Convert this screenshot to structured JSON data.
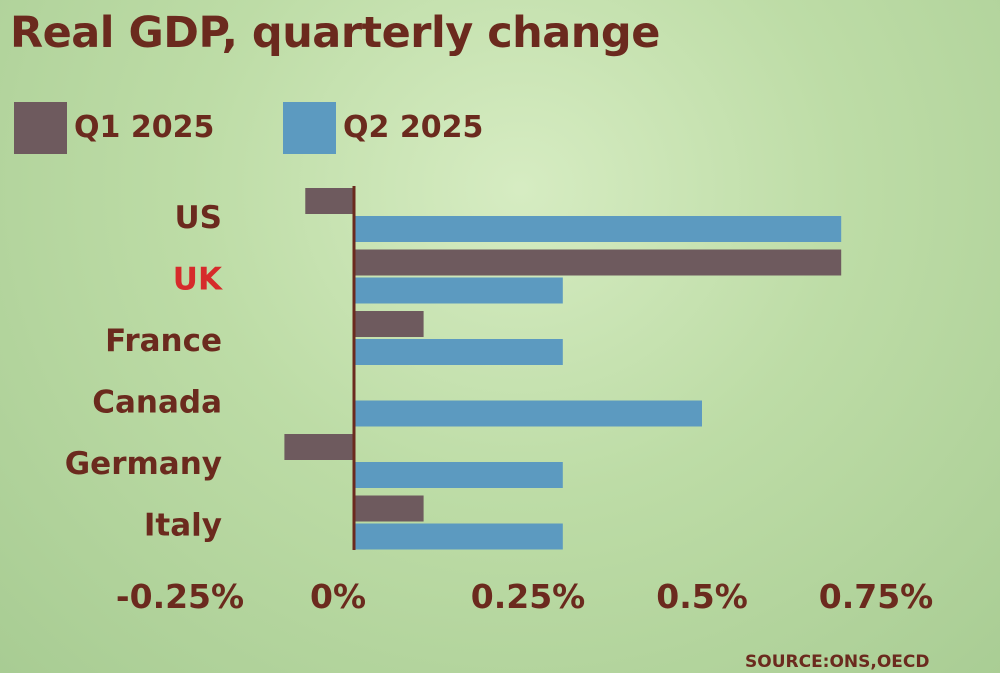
{
  "chart_data": {
    "type": "bar",
    "orientation": "horizontal",
    "title": "Real GDP, quarterly change",
    "categories": [
      "US",
      "UK",
      "France",
      "Canada",
      "Germany",
      "Italy"
    ],
    "highlight_category": "UK",
    "series": [
      {
        "name": "Q1 2025",
        "color": "#6e5a5e",
        "values": [
          -0.07,
          0.7,
          0.1,
          0.0,
          -0.1,
          0.1
        ]
      },
      {
        "name": "Q2 2025",
        "color": "#5c9ac0",
        "values": [
          0.7,
          0.3,
          0.3,
          0.5,
          0.3,
          0.3
        ]
      }
    ],
    "xlim": [
      -0.25,
      0.75
    ],
    "x_ticks": [
      -0.25,
      0,
      0.25,
      0.5,
      0.75
    ],
    "x_tick_labels": [
      "-0.25%",
      "0%",
      "0.25%",
      "0.5%",
      "0.75%"
    ],
    "xlabel": "",
    "ylabel": "",
    "grid": false,
    "legend_position": "top-left",
    "source": "SOURCE:ONS,OECD",
    "text_color": "#6b2a1e",
    "highlight_color": "#d62b2b",
    "axis_color": "#6b2a1e"
  }
}
